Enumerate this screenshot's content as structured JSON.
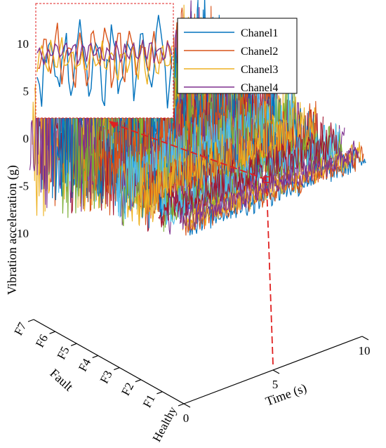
{
  "chart_data": {
    "type": "line",
    "variant": "3d-waterfall",
    "title": "",
    "xlabel": "Time (s)",
    "ylabel": "Fault",
    "zlabel": "Vibration acceleration (g)",
    "x_ticks": [
      "0",
      "5",
      "10"
    ],
    "x_range": [
      0,
      10
    ],
    "y_categories": [
      "Healthy",
      "F1",
      "F2",
      "F3",
      "F4",
      "F5",
      "F6",
      "F7"
    ],
    "z_ticks": [
      "10",
      "5",
      "0",
      "-5",
      "-10"
    ],
    "z_range": [
      -10,
      10
    ],
    "amplitude_by_condition": {
      "Healthy": 1.5,
      "F1": 2.5,
      "F2": 3.5,
      "F3": 4.5,
      "F4": 5.5,
      "F5": 6.5,
      "F6": 7.5,
      "F7": 9
    },
    "series": [
      {
        "name": "Chanel1",
        "color": "#0072BD"
      },
      {
        "name": "Chanel2",
        "color": "#D95319"
      },
      {
        "name": "Chanel3",
        "color": "#EDB120"
      },
      {
        "name": "Chanel4",
        "color": "#7E2F8E"
      }
    ],
    "extra_colors": [
      "#77AC30",
      "#4DBEEE",
      "#A2142F"
    ],
    "inset": {
      "x_range": [
        4.95,
        5.05
      ],
      "note": "zoomed segment"
    },
    "annotation_color": "#E02020",
    "grid": false,
    "legend_position": "top-right"
  }
}
